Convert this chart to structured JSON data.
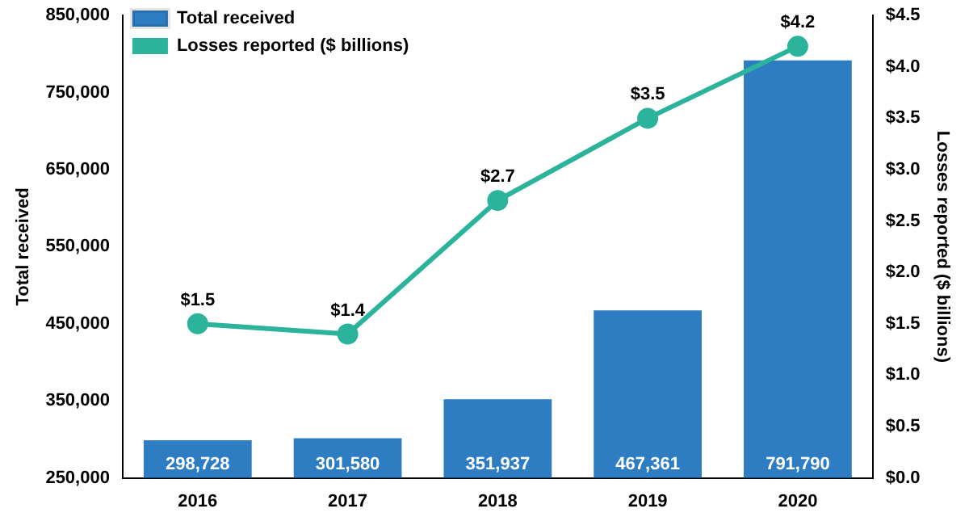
{
  "chart_data": {
    "type": "bar",
    "categories": [
      "2016",
      "2017",
      "2018",
      "2019",
      "2020"
    ],
    "ylabel": "Total received",
    "y2label": "Losses reported ($ billions)",
    "ylim": [
      250000,
      850000
    ],
    "yticks": [
      {
        "value": 250000,
        "label": "250,000"
      },
      {
        "value": 350000,
        "label": "350,000"
      },
      {
        "value": 450000,
        "label": "450,000"
      },
      {
        "value": 550000,
        "label": "550,000"
      },
      {
        "value": 650000,
        "label": "650,000"
      },
      {
        "value": 750000,
        "label": "750,000"
      },
      {
        "value": 850000,
        "label": "850,000"
      }
    ],
    "y2lim": [
      0,
      4.5
    ],
    "y2ticks": [
      {
        "value": 0,
        "label": "$0.0"
      },
      {
        "value": 0.5,
        "label": "$0.5"
      },
      {
        "value": 1,
        "label": "$1.0"
      },
      {
        "value": 1.5,
        "label": "$1.5"
      },
      {
        "value": 2,
        "label": "$2.0"
      },
      {
        "value": 2.5,
        "label": "$2.5"
      },
      {
        "value": 3,
        "label": "$3.0"
      },
      {
        "value": 3.5,
        "label": "$3.5"
      },
      {
        "value": 4,
        "label": "$4.0"
      },
      {
        "value": 4.5,
        "label": "$4.5"
      }
    ],
    "grid": false,
    "legend": "top left",
    "marker": "circle",
    "series": [
      {
        "name": "Total received",
        "color": "#2e7cc2",
        "values": [
          298728,
          301580,
          351937,
          467361,
          791790
        ],
        "value_labels": [
          "298,728",
          "301,580",
          "351,937",
          "467,361",
          "791,790"
        ]
      },
      {
        "name": "Losses reported ($ billions)",
        "type": "line",
        "axis": "y2",
        "color": "#2bb39c",
        "values": [
          1.5,
          1.4,
          2.7,
          3.5,
          4.2
        ],
        "value_labels": [
          "$1.5",
          "$1.4",
          "$2.7",
          "$3.5",
          "$4.2"
        ]
      }
    ]
  }
}
